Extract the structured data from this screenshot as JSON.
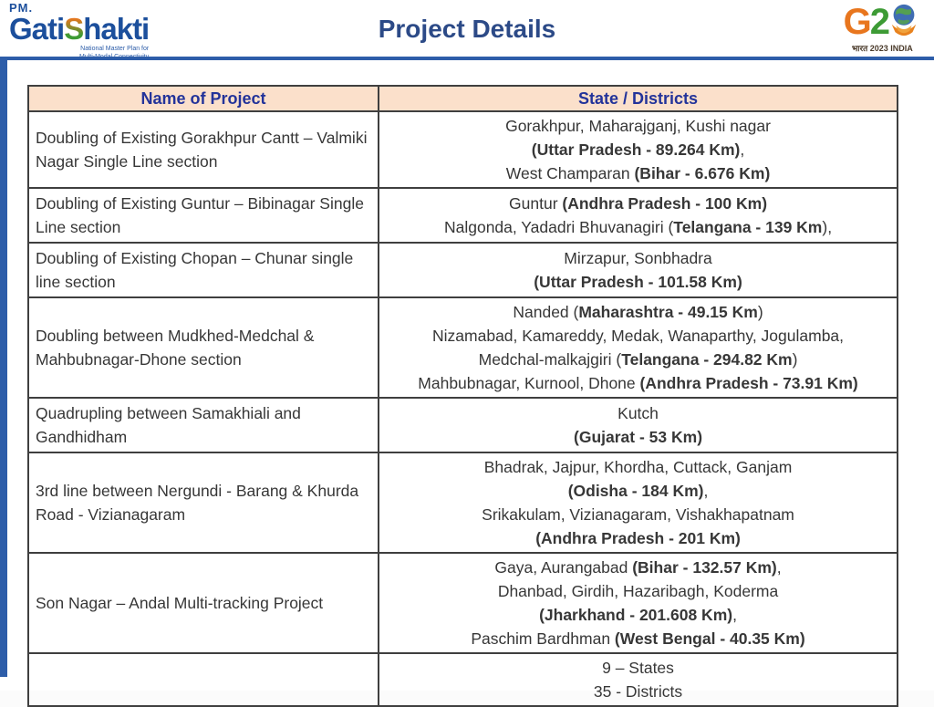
{
  "header": {
    "title": "Project Details",
    "logo_left": {
      "pm": "PM.",
      "gati": "Gati",
      "s": "S",
      "hakti": "hakti",
      "subtitle_line1": "National Master Plan for",
      "subtitle_line2": "Multi-Modal Connectivity"
    },
    "logo_right": {
      "g": "G",
      "two": "2",
      "caption": "भारत 2023 INDIA"
    }
  },
  "colors": {
    "accent_blue": "#2d5da9",
    "title_blue": "#2c4a87",
    "table_header_bg": "#fbe0cb",
    "table_header_text": "#23339a",
    "border": "#3f3f3f",
    "body_text": "#373737",
    "saffron": "#e8761e",
    "green": "#3d9b35",
    "globe_blue": "#3f6db3"
  },
  "table": {
    "columns": [
      "Name of Project",
      "State / Districts"
    ],
    "rows": [
      {
        "name": "Doubling of Existing Gorakhpur Cantt – Valmiki Nagar Single Line section",
        "details": [
          [
            {
              "t": "Gorakhpur, Maharajganj, Kushi nagar",
              "b": false
            }
          ],
          [
            {
              "t": "(Uttar Pradesh - 89.264 Km)",
              "b": true
            },
            {
              "t": ",",
              "b": false
            }
          ],
          [
            {
              "t": "West Champaran ",
              "b": false
            },
            {
              "t": "(Bihar - 6.676 Km)",
              "b": true
            }
          ]
        ]
      },
      {
        "name": "Doubling of Existing Guntur – Bibinagar Single Line section",
        "details": [
          [
            {
              "t": "Guntur ",
              "b": false
            },
            {
              "t": "(Andhra Pradesh - 100 Km)",
              "b": true
            }
          ],
          [
            {
              "t": "Nalgonda, Yadadri Bhuvanagiri (",
              "b": false
            },
            {
              "t": "Telangana - 139 Km",
              "b": true
            },
            {
              "t": "),",
              "b": false
            }
          ]
        ]
      },
      {
        "name": "Doubling of Existing Chopan – Chunar single line section",
        "details": [
          [
            {
              "t": "Mirzapur, Sonbhadra",
              "b": false
            }
          ],
          [
            {
              "t": "(Uttar Pradesh - 101.58 Km)",
              "b": true
            }
          ]
        ]
      },
      {
        "name": "Doubling between Mudkhed-Medchal & Mahbubnagar-Dhone section",
        "details": [
          [
            {
              "t": "Nanded (",
              "b": false
            },
            {
              "t": "Maharashtra - 49.15 Km",
              "b": true
            },
            {
              "t": ")",
              "b": false
            }
          ],
          [
            {
              "t": "Nizamabad, Kamareddy, Medak, Wanaparthy, Jogulamba,",
              "b": false
            }
          ],
          [
            {
              "t": "Medchal-malkajgiri (",
              "b": false
            },
            {
              "t": "Telangana - 294.82 Km",
              "b": true
            },
            {
              "t": ")",
              "b": false
            }
          ],
          [
            {
              "t": "Mahbubnagar, Kurnool, Dhone ",
              "b": false
            },
            {
              "t": "(Andhra Pradesh - 73.91 Km)",
              "b": true
            }
          ]
        ]
      },
      {
        "name": "Quadrupling between Samakhiali and Gandhidham",
        "details": [
          [
            {
              "t": "Kutch",
              "b": false
            }
          ],
          [
            {
              "t": "(Gujarat - 53 Km)",
              "b": true
            }
          ]
        ]
      },
      {
        "name": "3rd line between Nergundi - Barang & Khurda Road - Vizianagaram",
        "details": [
          [
            {
              "t": "Bhadrak, Jajpur, Khordha, Cuttack, Ganjam",
              "b": false
            }
          ],
          [
            {
              "t": "(Odisha - 184 Km)",
              "b": true
            },
            {
              "t": ",",
              "b": false
            }
          ],
          [
            {
              "t": "Srikakulam, Vizianagaram, Vishakhapatnam",
              "b": false
            }
          ],
          [
            {
              "t": "(Andhra Pradesh - 201 Km)",
              "b": true
            }
          ]
        ]
      },
      {
        "name": "Son Nagar – Andal Multi-tracking Project",
        "details": [
          [
            {
              "t": "Gaya, Aurangabad ",
              "b": false
            },
            {
              "t": "(Bihar - 132.57 Km)",
              "b": true
            },
            {
              "t": ",",
              "b": false
            }
          ],
          [
            {
              "t": "Dhanbad, Girdih, Hazaribagh, Koderma",
              "b": false
            }
          ],
          [
            {
              "t": "(Jharkhand - 201.608 Km)",
              "b": true
            },
            {
              "t": ",",
              "b": false
            }
          ],
          [
            {
              "t": "Paschim Bardhman ",
              "b": false
            },
            {
              "t": "(West Bengal - 40.35 Km)",
              "b": true
            }
          ]
        ]
      }
    ],
    "summary": [
      "9 – States",
      "35 - Districts"
    ]
  }
}
